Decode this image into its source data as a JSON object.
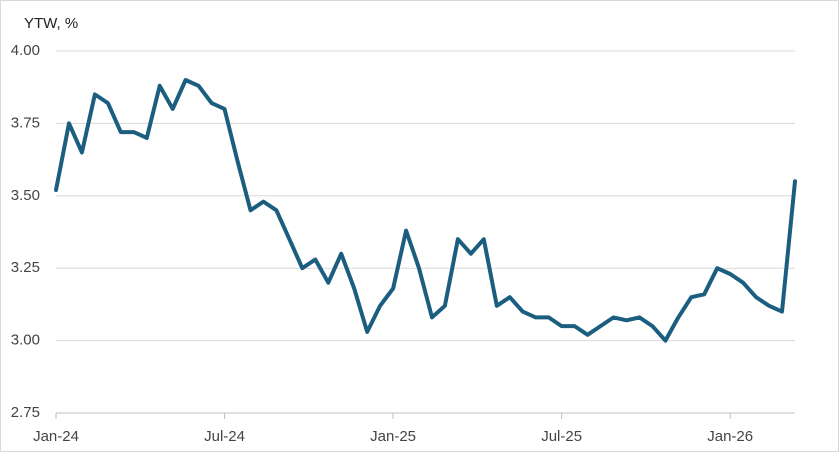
{
  "chart_data": {
    "type": "line",
    "title": "YTW, %",
    "categories": [
      "Jan-24",
      null,
      null,
      null,
      null,
      null,
      null,
      null,
      null,
      null,
      null,
      null,
      null,
      "Jul-24",
      null,
      null,
      null,
      null,
      null,
      null,
      null,
      null,
      null,
      null,
      null,
      null,
      "Jan-25",
      null,
      null,
      null,
      null,
      null,
      null,
      null,
      null,
      null,
      null,
      null,
      null,
      "Jul-25",
      null,
      null,
      null,
      null,
      null,
      null,
      null,
      null,
      null,
      null,
      null,
      null,
      "Jan-26",
      null,
      null,
      null,
      null,
      null
    ],
    "series": [
      {
        "name": "YTW",
        "color": "#1b5e80",
        "values": [
          3.52,
          3.75,
          3.65,
          3.85,
          3.82,
          3.72,
          3.72,
          3.7,
          3.88,
          3.8,
          3.9,
          3.88,
          3.82,
          3.8,
          3.62,
          3.45,
          3.48,
          3.45,
          3.35,
          3.25,
          3.28,
          3.2,
          3.3,
          3.18,
          3.03,
          3.12,
          3.18,
          3.38,
          3.25,
          3.08,
          3.12,
          3.35,
          3.3,
          3.35,
          3.12,
          3.15,
          3.1,
          3.08,
          3.08,
          3.05,
          3.05,
          3.02,
          3.05,
          3.08,
          3.07,
          3.08,
          3.05,
          3.0,
          3.08,
          3.15,
          3.16,
          3.25,
          3.23,
          3.2,
          3.15,
          3.12,
          3.1,
          3.55
        ]
      }
    ],
    "ylim": [
      2.75,
      4
    ],
    "yticks": [
      2.75,
      {
        "value": 3,
        "label": "3.00"
      },
      3.25,
      {
        "value": 3.5,
        "label": "3.50"
      },
      3.75,
      {
        "value": 4,
        "label": "4.00"
      }
    ],
    "grid": true
  }
}
